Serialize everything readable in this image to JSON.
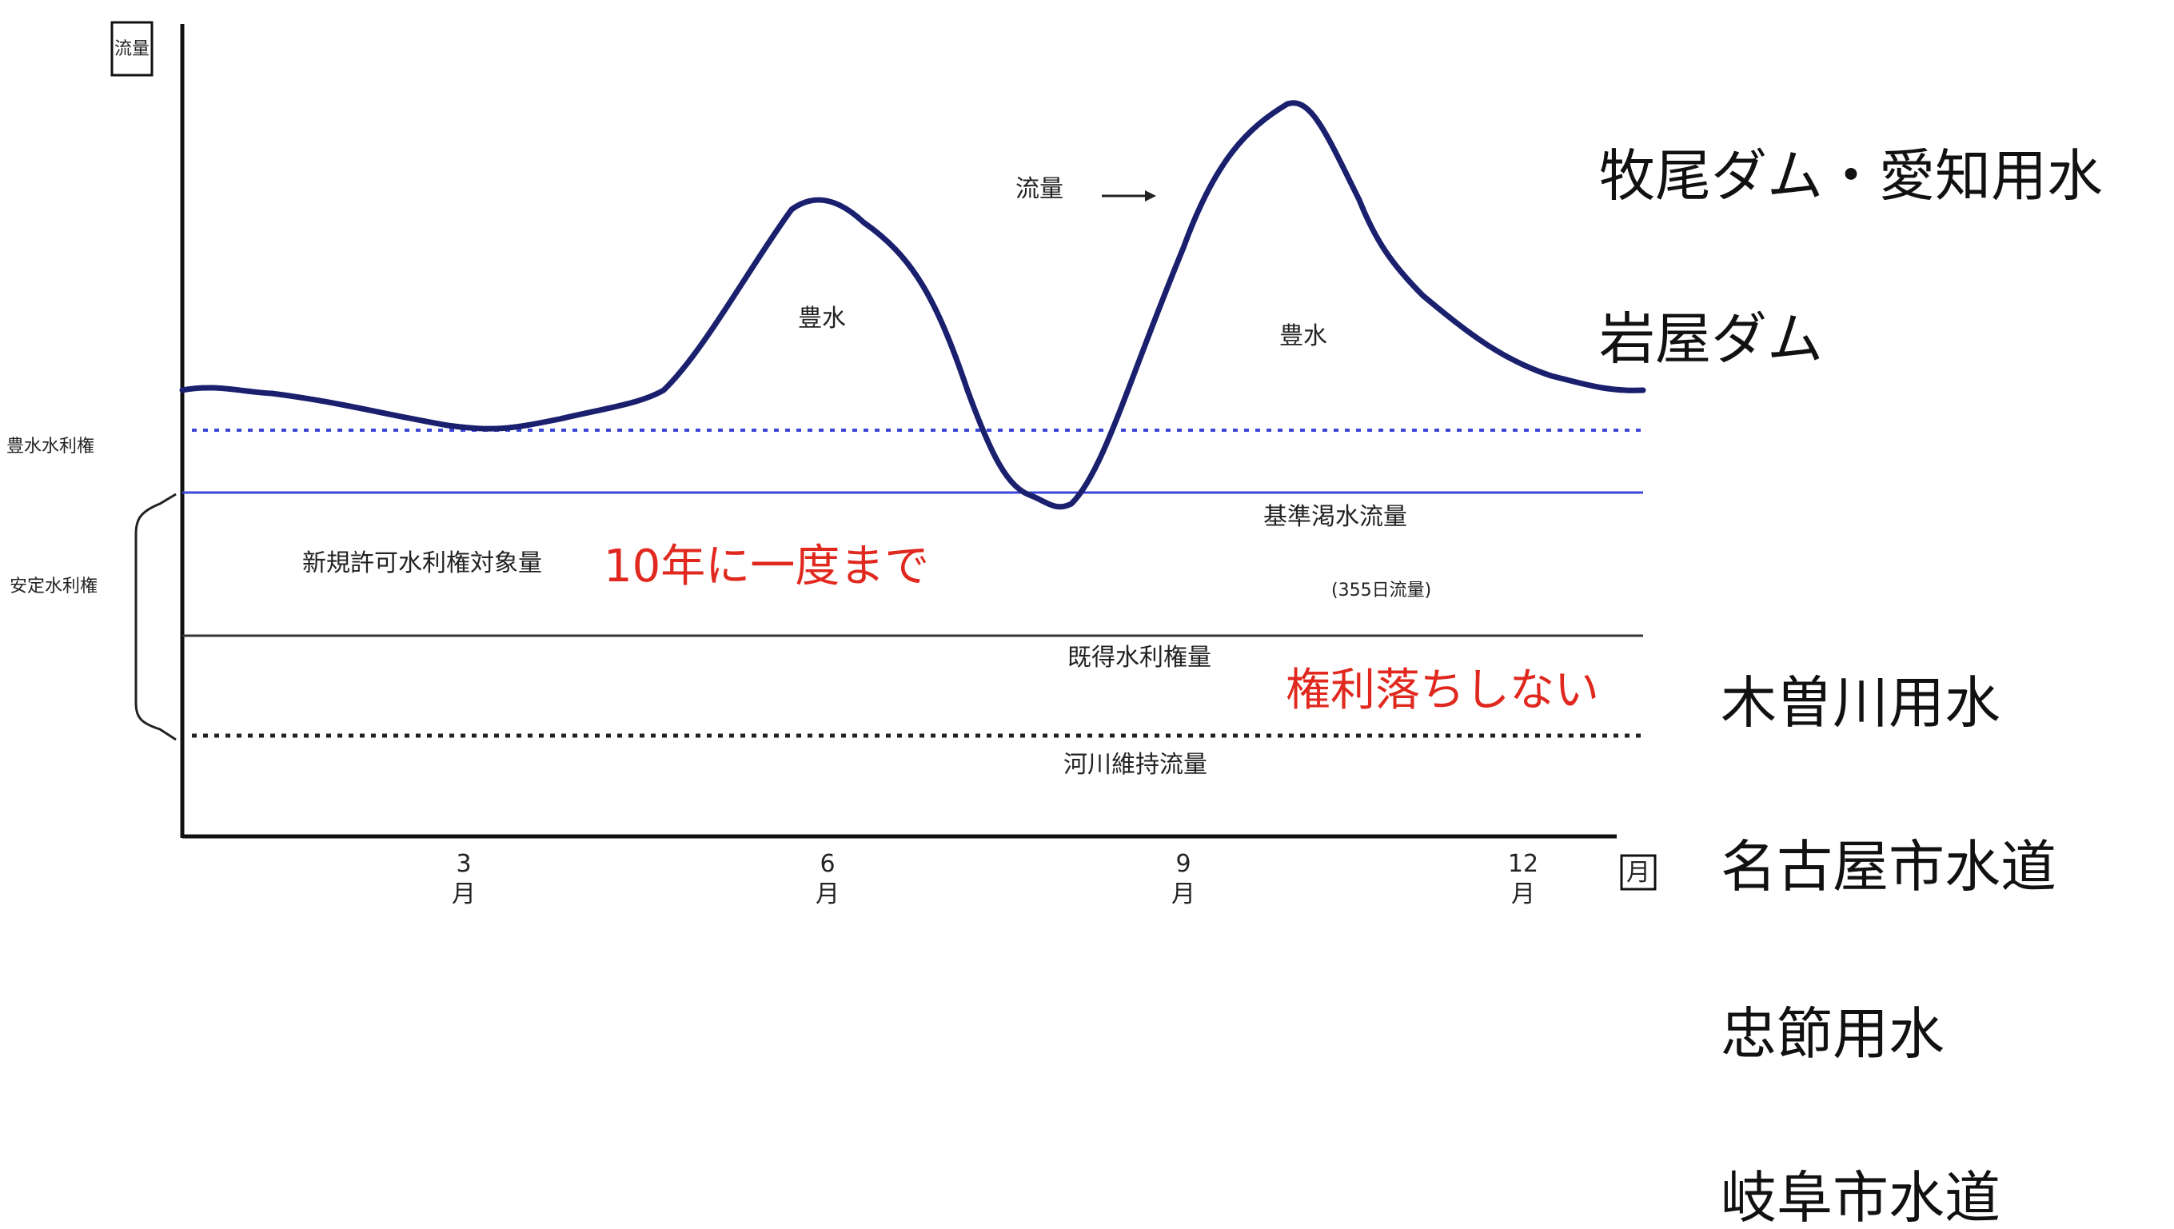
{
  "diagram": {
    "axis": {
      "y_label": "流量",
      "x_unit": "月",
      "ticks": [
        {
          "month": "3",
          "unit": "月"
        },
        {
          "month": "6",
          "unit": "月"
        },
        {
          "month": "9",
          "unit": "月"
        },
        {
          "month": "12",
          "unit": "月"
        }
      ]
    },
    "curve_label": "流量",
    "peaks": [
      "豊水",
      "豊水"
    ],
    "lines": {
      "flood_right": "豊水水利権",
      "standard_drought": "基準渇水流量",
      "standard_drought_note": "(355日流量)",
      "existing_rights": "既得水利権量",
      "river_maintenance": "河川維持流量"
    },
    "left_labels": {
      "flood_right": "豊水水利権",
      "stable_right": "安定水利権"
    },
    "bands": {
      "new_permit": "新規許可水利権対象量"
    },
    "annotations": {
      "red_upper": "10年に一度まで",
      "red_lower": "権利落ちしない"
    },
    "side_labels": {
      "top": [
        "牧尾ダム・愛知用水",
        "岩屋ダム"
      ],
      "bottom": [
        "木曽川用水",
        "名古屋市水道",
        "忠節用水",
        "岐阜市水道"
      ]
    },
    "colors": {
      "curve": "#1a1f6e",
      "flood_line": "#3b46d8",
      "standard_line": "#3b46d8",
      "axis": "#111111",
      "annotation": "#e0281e"
    }
  }
}
